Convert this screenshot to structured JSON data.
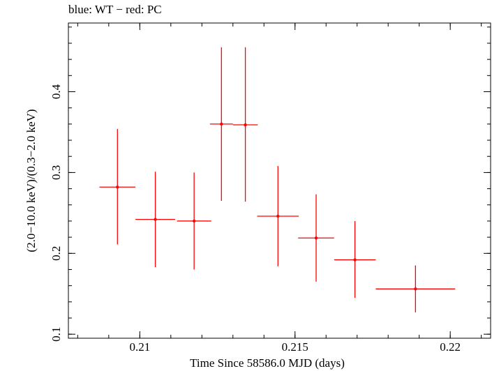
{
  "chart_data": {
    "type": "scatter",
    "title": "blue: WT − red: PC",
    "xlabel": "Time Since 58586.0 MJD (days)",
    "ylabel": "(2.0−10.0 keV)/(0.3−2.0 keV)",
    "xlim": [
      0.2077,
      0.2213
    ],
    "ylim": [
      0.095,
      0.485
    ],
    "x_ticks": [
      {
        "value": 0.21,
        "label": "0.21"
      },
      {
        "value": 0.215,
        "label": "0.215"
      },
      {
        "value": 0.22,
        "label": "0.22"
      }
    ],
    "y_ticks": [
      {
        "value": 0.1,
        "label": "0.1"
      },
      {
        "value": 0.2,
        "label": "0.2"
      },
      {
        "value": 0.3,
        "label": "0.3"
      },
      {
        "value": 0.4,
        "label": "0.4"
      }
    ],
    "series": [
      {
        "name": "PC",
        "color": "#ff0000",
        "points": [
          {
            "x": 0.20928,
            "y": 0.282,
            "xerr": 0.00058,
            "ylo": 0.211,
            "yhi": 0.354
          },
          {
            "x": 0.2105,
            "y": 0.242,
            "xerr": 0.00064,
            "ylo": 0.183,
            "yhi": 0.301
          },
          {
            "x": 0.21175,
            "y": 0.24,
            "xerr": 0.00055,
            "ylo": 0.18,
            "yhi": 0.3
          },
          {
            "x": 0.21263,
            "y": 0.36,
            "xerr": 0.00037,
            "ylo": 0.265,
            "yhi": 0.455
          },
          {
            "x": 0.2134,
            "y": 0.359,
            "xerr": 0.0004,
            "ylo": 0.264,
            "yhi": 0.455
          },
          {
            "x": 0.21445,
            "y": 0.246,
            "xerr": 0.00067,
            "ylo": 0.184,
            "yhi": 0.308
          },
          {
            "x": 0.21568,
            "y": 0.219,
            "xerr": 0.00058,
            "ylo": 0.165,
            "yhi": 0.273
          },
          {
            "x": 0.21693,
            "y": 0.192,
            "xerr": 0.00067,
            "ylo": 0.145,
            "yhi": 0.24
          },
          {
            "x": 0.21888,
            "y": 0.156,
            "xerr": 0.00128,
            "ylo": 0.127,
            "yhi": 0.185
          }
        ]
      }
    ]
  }
}
